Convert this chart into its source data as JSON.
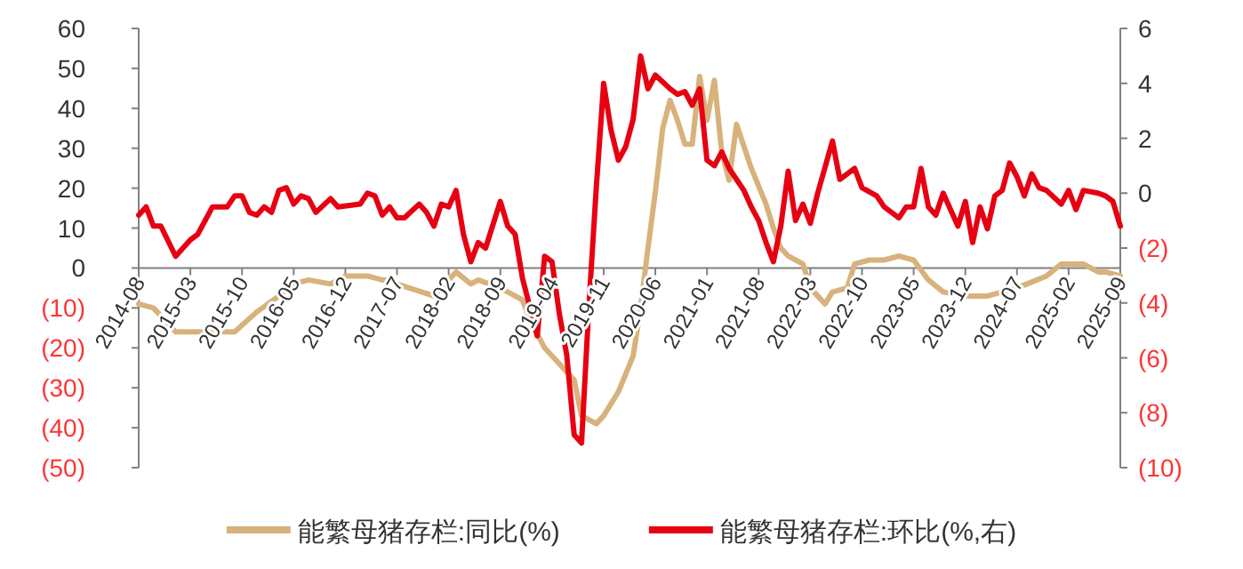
{
  "chart_data": {
    "type": "line",
    "xlim": [
      "2014-08",
      "2025-09"
    ],
    "xticks": [
      "2014-08",
      "2015-03",
      "2015-10",
      "2016-05",
      "2016-12",
      "2017-07",
      "2018-02",
      "2018-09",
      "2019-04",
      "2019-11",
      "2020-06",
      "2021-01",
      "2021-08",
      "2022-03",
      "2022-10",
      "2023-05",
      "2023-12",
      "2024-07",
      "2025-02",
      "2025-09"
    ],
    "ylim": [
      -50,
      60
    ],
    "yticks": [
      {
        "value": -50,
        "label": "(50)"
      },
      {
        "value": -40,
        "label": "(40)"
      },
      {
        "value": -30,
        "label": "(30)"
      },
      {
        "value": -20,
        "label": "(20)"
      },
      {
        "value": -10,
        "label": "(10)"
      },
      0,
      10,
      20,
      30,
      40,
      50,
      60
    ],
    "y2lim": [
      -10,
      6
    ],
    "y2ticks": [
      {
        "value": -10,
        "label": "(10)"
      },
      {
        "value": -8,
        "label": "(8)"
      },
      {
        "value": -6,
        "label": "(6)"
      },
      {
        "value": -4,
        "label": "(4)"
      },
      {
        "value": -2,
        "label": "(2)"
      },
      0,
      2,
      4,
      6
    ],
    "legend": "bottom",
    "line_style": "solid",
    "series": [
      {
        "name": "能繁母猪存栏:同比(%)",
        "color": "#d8b27c",
        "x": [
          "2014-08",
          "2014-10",
          "2015-01",
          "2015-03",
          "2015-05",
          "2015-07",
          "2015-09",
          "2015-12",
          "2016-03",
          "2016-05",
          "2016-07",
          "2016-10",
          "2016-12",
          "2017-02",
          "2017-03",
          "2017-05",
          "2017-06",
          "2017-07",
          "2017-12",
          "2018-01",
          "2018-03",
          "2018-05",
          "2018-06",
          "2018-09",
          "2018-10",
          "2018-12",
          "2019-01",
          "2019-03",
          "2019-05",
          "2019-07",
          "2019-08",
          "2019-10",
          "2019-11",
          "2020-01",
          "2020-03",
          "2020-04",
          "2020-05",
          "2020-06",
          "2020-07",
          "2020-08",
          "2020-09",
          "2020-10",
          "2020-11",
          "2020-12",
          "2021-01",
          "2021-02",
          "2021-03",
          "2021-04",
          "2021-05",
          "2021-07",
          "2021-09",
          "2021-10",
          "2021-11",
          "2021-12",
          "2022-02",
          "2022-03",
          "2022-05",
          "2022-06",
          "2022-08",
          "2022-09",
          "2022-11",
          "2023-01",
          "2023-03",
          "2023-05",
          "2023-07",
          "2023-09",
          "2023-12",
          "2024-03",
          "2024-05",
          "2024-07",
          "2024-11",
          "2025-01",
          "2025-04",
          "2025-06",
          "2025-07",
          "2025-09"
        ],
        "values": [
          -9,
          -10,
          -16,
          -16,
          -16,
          -16,
          -16,
          -11,
          -7,
          -4,
          -3,
          -4,
          -2,
          -2,
          -2,
          -3,
          -3,
          -4,
          -7,
          -5,
          -1,
          -4,
          -3,
          -5,
          -6,
          -8,
          -13,
          -20,
          -24,
          -28,
          -37,
          -39,
          -37,
          -31,
          -22,
          -10,
          5,
          19,
          35,
          42,
          37,
          31,
          31,
          48,
          37,
          47,
          29,
          22,
          36,
          25,
          16,
          10,
          5,
          3,
          1,
          -5,
          -9,
          -6,
          -5,
          1,
          2,
          2,
          3,
          2,
          -3,
          -6,
          -7,
          -7,
          -6,
          -5,
          -2,
          1,
          1,
          -1,
          -1,
          -2
        ]
      },
      {
        "name": "能繁母猪存栏:环比(%,右)",
        "color": "#e60012",
        "axis": "y2",
        "x": [
          "2014-08",
          "2014-09",
          "2014-10",
          "2014-11",
          "2015-01",
          "2015-03",
          "2015-04",
          "2015-06",
          "2015-08",
          "2015-09",
          "2015-10",
          "2015-11",
          "2015-12",
          "2016-01",
          "2016-02",
          "2016-03",
          "2016-04",
          "2016-05",
          "2016-06",
          "2016-07",
          "2016-08",
          "2016-10",
          "2016-11",
          "2017-02",
          "2017-03",
          "2017-04",
          "2017-05",
          "2017-06",
          "2017-07",
          "2017-08",
          "2017-10",
          "2017-11",
          "2017-12",
          "2018-01",
          "2018-02",
          "2018-03",
          "2018-04",
          "2018-05",
          "2018-06",
          "2018-07",
          "2018-09",
          "2018-10",
          "2018-11",
          "2018-12",
          "2019-02",
          "2019-03",
          "2019-04",
          "2019-05",
          "2019-06",
          "2019-07",
          "2019-08",
          "2019-09",
          "2019-10",
          "2019-11",
          "2019-12",
          "2020-01",
          "2020-02",
          "2020-03",
          "2020-04",
          "2020-05",
          "2020-06",
          "2020-08",
          "2020-09",
          "2020-10",
          "2020-11",
          "2020-12",
          "2021-01",
          "2021-02",
          "2021-03",
          "2021-04",
          "2021-06",
          "2021-07",
          "2021-08",
          "2021-09",
          "2021-10",
          "2021-11",
          "2021-12",
          "2022-01",
          "2022-02",
          "2022-03",
          "2022-04",
          "2022-06",
          "2022-07",
          "2022-09",
          "2022-10",
          "2022-12",
          "2023-01",
          "2023-03",
          "2023-04",
          "2023-05",
          "2023-06",
          "2023-07",
          "2023-08",
          "2023-09",
          "2023-10",
          "2023-11",
          "2023-12",
          "2024-01",
          "2024-02",
          "2024-03",
          "2024-04",
          "2024-05",
          "2024-06",
          "2024-07",
          "2024-08",
          "2024-09",
          "2024-10",
          "2024-11",
          "2025-01",
          "2025-02",
          "2025-03",
          "2025-04",
          "2025-06",
          "2025-07",
          "2025-08",
          "2025-09"
        ],
        "values": [
          -0.8,
          -0.5,
          -1.2,
          -1.2,
          -2.3,
          -1.7,
          -1.5,
          -0.5,
          -0.5,
          -0.1,
          -0.1,
          -0.7,
          -0.8,
          -0.5,
          -0.7,
          0.1,
          0.2,
          -0.4,
          -0.1,
          -0.2,
          -0.7,
          -0.2,
          -0.5,
          -0.4,
          0,
          -0.1,
          -0.8,
          -0.5,
          -0.9,
          -0.9,
          -0.4,
          -0.7,
          -1.2,
          -0.4,
          -0.5,
          0.1,
          -1.5,
          -2.5,
          -1.8,
          -2.0,
          -0.3,
          -1.2,
          -1.5,
          -3.1,
          -5.2,
          -2.3,
          -2.5,
          -4.4,
          -5.9,
          -8.8,
          -9.1,
          -4.1,
          0.2,
          4.0,
          2.3,
          1.2,
          1.7,
          2.7,
          5.0,
          3.8,
          4.3,
          3.8,
          3.6,
          3.7,
          3.2,
          3.8,
          1.2,
          1.0,
          1.5,
          0.9,
          0.1,
          -0.5,
          -1.0,
          -1.8,
          -2.5,
          -1.2,
          0.8,
          -1.0,
          -0.4,
          -1.1,
          0,
          1.9,
          0.5,
          0.9,
          0.2,
          -0.1,
          -0.5,
          -0.9,
          -0.5,
          -0.5,
          0.9,
          -0.5,
          -0.8,
          0,
          -0.6,
          -1.2,
          -0.3,
          -1.8,
          -0.5,
          -1.3,
          -0.1,
          0.1,
          1.1,
          0.6,
          -0.1,
          0.7,
          0.2,
          0.1,
          -0.4,
          0.1,
          -0.6,
          0.1,
          0,
          -0.1,
          -0.3,
          -1.2
        ]
      }
    ]
  }
}
